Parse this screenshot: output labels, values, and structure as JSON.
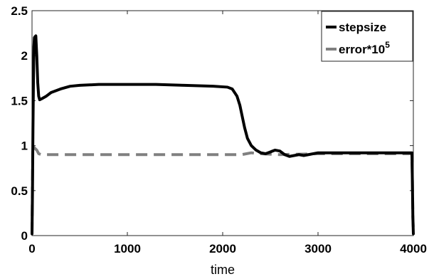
{
  "chart_data": {
    "type": "line",
    "title": "",
    "xlabel": "time",
    "ylabel": "",
    "xlim": [
      0,
      4000
    ],
    "ylim": [
      0,
      2.5
    ],
    "xticks": [
      0,
      1000,
      2000,
      3000,
      4000
    ],
    "xtick_labels": [
      "0",
      "1000",
      "2000",
      "3000",
      "4000"
    ],
    "yticks": [
      0,
      0.5,
      1,
      1.5,
      2,
      2.5
    ],
    "ytick_labels": [
      "0",
      "0.5",
      "1",
      "1.5",
      "2",
      "2.5"
    ],
    "grid": false,
    "legend_position": "top-right",
    "series": [
      {
        "name": "stepsize",
        "color": "#000000",
        "style": "solid",
        "x": [
          0,
          5,
          10,
          15,
          20,
          25,
          30,
          40,
          50,
          60,
          70,
          80,
          100,
          150,
          200,
          300,
          400,
          500,
          700,
          1000,
          1300,
          1600,
          1900,
          2050,
          2100,
          2150,
          2180,
          2200,
          2230,
          2260,
          2300,
          2350,
          2400,
          2450,
          2500,
          2550,
          2600,
          2650,
          2700,
          2750,
          2800,
          2850,
          2900,
          3000,
          3200,
          3500,
          3800,
          3985,
          3990,
          3995,
          4000
        ],
        "y": [
          0.02,
          0.5,
          1.2,
          1.7,
          2.1,
          2.2,
          2.21,
          2.22,
          2.0,
          1.7,
          1.55,
          1.51,
          1.52,
          1.55,
          1.59,
          1.63,
          1.66,
          1.67,
          1.68,
          1.68,
          1.68,
          1.67,
          1.66,
          1.65,
          1.63,
          1.55,
          1.45,
          1.35,
          1.2,
          1.08,
          1.0,
          0.95,
          0.92,
          0.91,
          0.93,
          0.95,
          0.94,
          0.9,
          0.88,
          0.89,
          0.9,
          0.89,
          0.9,
          0.92,
          0.92,
          0.92,
          0.92,
          0.92,
          0.6,
          0.2,
          0.02
        ]
      },
      {
        "name": "error*10",
        "name_superscript": "5",
        "color": "#808080",
        "style": "dashed",
        "x": [
          0,
          4,
          8,
          15,
          30,
          50,
          70,
          100,
          500,
          1000,
          1500,
          2000,
          2200,
          2300,
          2400,
          2600,
          3000,
          3500,
          3985,
          3990,
          3995,
          4000
        ],
        "y": [
          0.02,
          0.5,
          1.0,
          0.99,
          0.97,
          0.95,
          0.91,
          0.9,
          0.9,
          0.9,
          0.9,
          0.9,
          0.9,
          0.92,
          0.91,
          0.9,
          0.91,
          0.91,
          0.91,
          0.6,
          0.2,
          0.06
        ]
      }
    ]
  }
}
